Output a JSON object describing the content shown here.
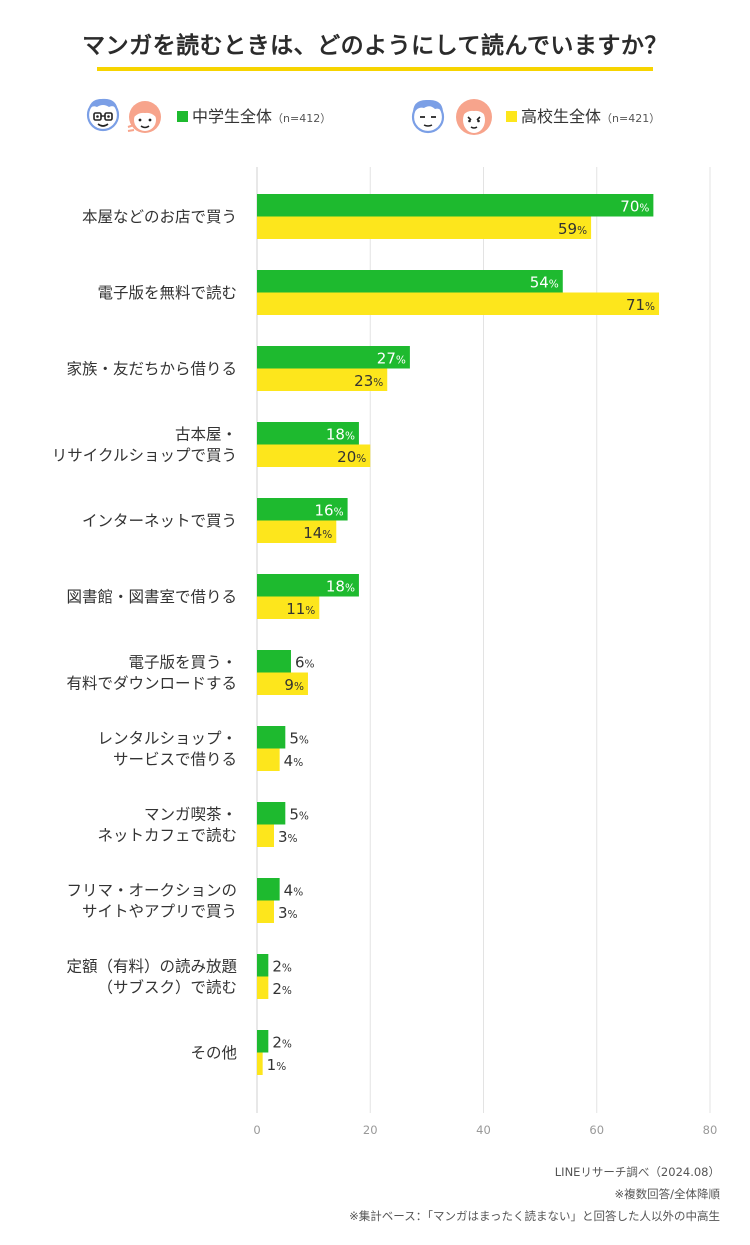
{
  "title": "マンガを読むときは、どのようにして読んでいますか？",
  "legend": {
    "junior": {
      "label": "中学生全体",
      "n": "（n=412）"
    },
    "senior": {
      "label": "高校生全体",
      "n": "（n=421）"
    }
  },
  "colors": {
    "junior": "#1eba2f",
    "senior": "#fde61c",
    "grid": "#e3e3e3",
    "accent": "#f7d400"
  },
  "chart_data": {
    "type": "bar",
    "orientation": "horizontal",
    "categories": [
      [
        "本屋などのお店で買う"
      ],
      [
        "電子版を無料で読む"
      ],
      [
        "家族・友だちから借りる"
      ],
      [
        "古本屋・",
        "リサイクルショップで買う"
      ],
      [
        "インターネットで買う"
      ],
      [
        "図書館・図書室で借りる"
      ],
      [
        "電子版を買う・",
        "有料でダウンロードする"
      ],
      [
        "レンタルショップ・",
        "サービスで借りる"
      ],
      [
        "マンガ喫茶・",
        "ネットカフェで読む"
      ],
      [
        "フリマ・オークションの",
        "サイトやアプリで買う"
      ],
      [
        "定額（有料）の読み放題",
        "（サブスク）で読む"
      ],
      [
        "その他"
      ]
    ],
    "series": [
      {
        "name": "中学生全体",
        "values": [
          70,
          54,
          27,
          18,
          16,
          18,
          6,
          5,
          5,
          4,
          2,
          2
        ]
      },
      {
        "name": "高校生全体",
        "values": [
          59,
          71,
          23,
          20,
          14,
          11,
          9,
          4,
          3,
          3,
          2,
          1
        ]
      }
    ],
    "xlim": [
      0,
      80
    ],
    "xticks": [
      0,
      20,
      40,
      60,
      80
    ],
    "value_suffix": "%",
    "grid": true
  },
  "footnotes": [
    "LINEリサーチ調べ（2024.08）",
    "※複数回答/全体降順",
    "※集計ベース：「マンガはまったく読まない」と回答した人以外の中高生"
  ]
}
